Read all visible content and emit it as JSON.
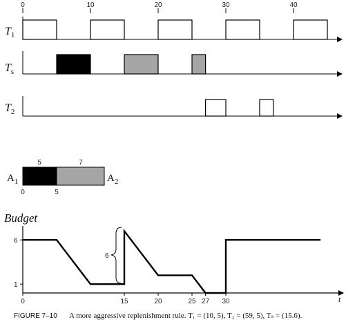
{
  "timeline": {
    "top_ticks": [
      "0",
      "10",
      "20",
      "30",
      "40"
    ],
    "rows": [
      {
        "label": "T",
        "sub": "1",
        "boxes": [
          [
            0,
            5
          ],
          [
            10,
            15
          ],
          [
            20,
            25
          ],
          [
            30,
            35
          ],
          [
            40,
            45
          ]
        ],
        "fill": "#ffffff"
      },
      {
        "label": "T",
        "sub": "s",
        "boxes": [
          [
            5,
            10,
            "#000000"
          ],
          [
            15,
            20,
            "#a6a6a6"
          ],
          [
            25,
            27,
            "#a6a6a6"
          ]
        ]
      },
      {
        "label": "T",
        "sub": "2",
        "boxes": [
          [
            27,
            30
          ],
          [
            35,
            37
          ]
        ],
        "fill": "#ffffff"
      }
    ]
  },
  "accounts": {
    "a1_label": "A",
    "a1_sub": "1",
    "a2_label": "A",
    "a2_sub": "2",
    "above_labels": [
      "5",
      "7"
    ],
    "below_labels": [
      "0",
      "5"
    ],
    "segments": [
      {
        "value": 5,
        "color": "#000000"
      },
      {
        "value": 7,
        "color": "#a6a6a6"
      }
    ]
  },
  "budget": {
    "title": "Budget",
    "t_label": "t",
    "y_ticks": [
      "6",
      "1"
    ],
    "x_ticks": [
      "0",
      "15",
      "20",
      "25",
      "27",
      "30"
    ],
    "brace_label": "6",
    "points": [
      [
        0,
        6
      ],
      [
        5,
        6
      ],
      [
        10,
        1
      ],
      [
        15,
        1
      ],
      [
        15,
        7
      ],
      [
        20,
        2
      ],
      [
        25,
        2
      ],
      [
        27,
        0
      ],
      [
        30,
        0
      ],
      [
        30,
        6
      ],
      [
        44,
        6
      ]
    ]
  },
  "caption": {
    "label": "FIGURE 7–10",
    "text": "A more aggressive replenishment rule. T₁ = (10, 5), T₂ = (59, 5), Tₛ = (15.6)."
  }
}
